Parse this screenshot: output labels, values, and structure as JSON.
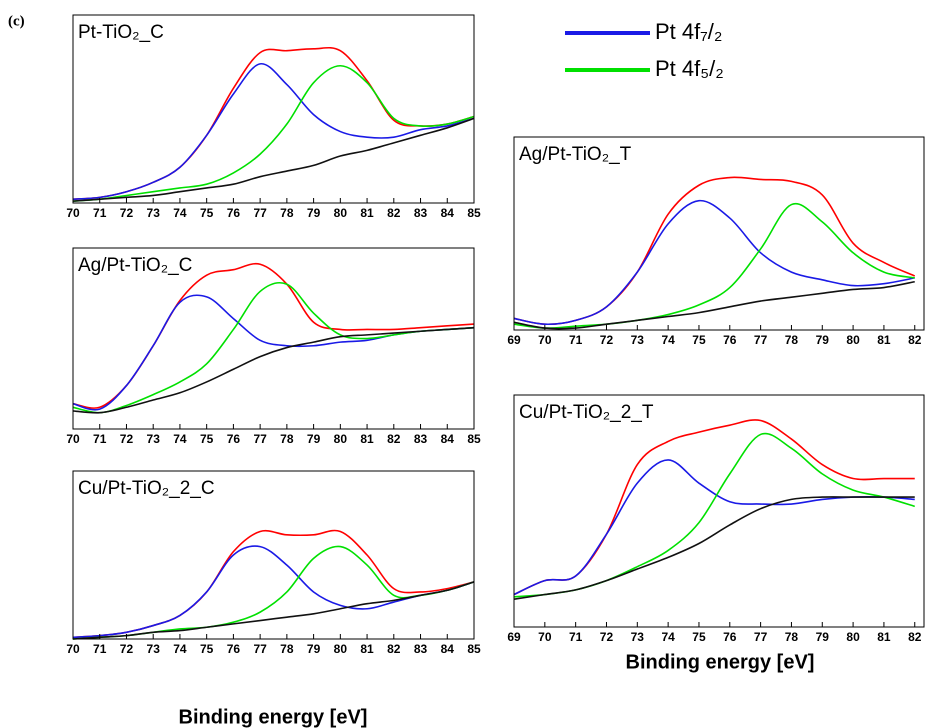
{
  "panel_label": "(c)",
  "legend": [
    {
      "label": "Pt 4f₇/₂",
      "color": "#1a1ae6"
    },
    {
      "label": "Pt 4f₅/₂",
      "color": "#00e000"
    }
  ],
  "chart_data": [
    {
      "type": "line",
      "title": "Pt-TiO₂_C",
      "x": [
        70,
        71,
        72,
        73,
        74,
        75,
        76,
        77,
        78,
        79,
        80,
        81,
        82,
        83,
        84,
        85
      ],
      "xlim": [
        70,
        85
      ],
      "xticks": [
        70,
        71,
        72,
        73,
        74,
        75,
        76,
        77,
        78,
        79,
        80,
        81,
        82,
        83,
        84,
        85
      ],
      "ylim": [
        0,
        100
      ],
      "series": [
        {
          "color": "#ff0000",
          "values": [
            2,
            3,
            6,
            11,
            19,
            36,
            61,
            80,
            81,
            82,
            81,
            65,
            44,
            41,
            42,
            46
          ]
        },
        {
          "color": "#1a1ae6",
          "values": [
            2,
            3,
            6,
            11,
            19,
            36,
            58,
            74,
            63,
            47,
            38,
            35,
            35,
            39,
            41,
            45
          ]
        },
        {
          "color": "#00e000",
          "values": [
            1,
            2,
            4,
            6,
            8,
            10,
            16,
            26,
            42,
            64,
            73,
            64,
            45,
            41,
            42,
            46
          ]
        },
        {
          "color": "#111111",
          "values": [
            1,
            2,
            3,
            4,
            6,
            8,
            10,
            14,
            17,
            20,
            25,
            28,
            32,
            36,
            40,
            45
          ]
        }
      ]
    },
    {
      "type": "line",
      "title": "Ag/Pt-TiO₂_C",
      "x": [
        70,
        71,
        72,
        73,
        74,
        75,
        76,
        77,
        78,
        79,
        80,
        81,
        82,
        83,
        84,
        85
      ],
      "xlim": [
        70,
        85
      ],
      "xticks": [
        70,
        71,
        72,
        73,
        74,
        75,
        76,
        77,
        78,
        79,
        80,
        81,
        82,
        83,
        84,
        85
      ],
      "ylim": [
        0,
        100
      ],
      "series": [
        {
          "color": "#ff0000",
          "values": [
            14,
            12,
            24,
            46,
            71,
            85,
            88,
            91,
            80,
            59,
            55,
            55,
            55,
            56,
            57,
            58
          ]
        },
        {
          "color": "#1a1ae6",
          "values": [
            14,
            11,
            24,
            46,
            70,
            73,
            61,
            49,
            46,
            46,
            48,
            49,
            52,
            54,
            55,
            56
          ]
        },
        {
          "color": "#00e000",
          "values": [
            12,
            9,
            13,
            19,
            26,
            36,
            55,
            76,
            80,
            64,
            52,
            50,
            52,
            54,
            55,
            56
          ]
        },
        {
          "color": "#111111",
          "values": [
            10,
            9,
            12,
            16,
            20,
            26,
            33,
            40,
            45,
            48,
            51,
            52,
            53,
            54,
            55,
            56
          ]
        }
      ]
    },
    {
      "type": "line",
      "title": "Cu/Pt-TiO₂_2_C",
      "xlabel": "Binding energy [eV]",
      "x": [
        70,
        71,
        72,
        73,
        74,
        75,
        76,
        77,
        78,
        79,
        80,
        81,
        82,
        83,
        84,
        85
      ],
      "xlim": [
        70,
        85
      ],
      "xticks": [
        70,
        71,
        72,
        73,
        74,
        75,
        76,
        77,
        78,
        79,
        80,
        81,
        82,
        83,
        84,
        85
      ],
      "ylim": [
        0,
        100
      ],
      "series": [
        {
          "color": "#ff0000",
          "values": [
            1,
            2,
            4,
            8,
            14,
            28,
            52,
            64,
            62,
            62,
            64,
            50,
            30,
            28,
            30,
            34
          ]
        },
        {
          "color": "#1a1ae6",
          "values": [
            1,
            2,
            4,
            8,
            14,
            28,
            50,
            55,
            44,
            28,
            20,
            18,
            22,
            26,
            29,
            34
          ]
        },
        {
          "color": "#00e000",
          "values": [
            0,
            1,
            2,
            4,
            6,
            7,
            10,
            16,
            28,
            48,
            55,
            44,
            26,
            26,
            29,
            34
          ]
        },
        {
          "color": "#111111",
          "values": [
            0,
            1,
            2,
            4,
            5,
            7,
            9,
            11,
            13,
            15,
            18,
            21,
            23,
            26,
            29,
            34
          ]
        }
      ]
    },
    {
      "type": "line",
      "title": "Ag/Pt-TiO₂_T",
      "x": [
        69,
        70,
        71,
        72,
        73,
        74,
        75,
        76,
        77,
        78,
        79,
        80,
        81,
        82
      ],
      "xlim": [
        69,
        82.3
      ],
      "xticks": [
        69,
        70,
        71,
        72,
        73,
        74,
        75,
        76,
        77,
        78,
        79,
        80,
        81,
        82
      ],
      "ylim": [
        0,
        100
      ],
      "series": [
        {
          "color": "#ff0000",
          "values": [
            6,
            3,
            5,
            12,
            30,
            60,
            75,
            79,
            78,
            77,
            70,
            45,
            35,
            28
          ]
        },
        {
          "color": "#1a1ae6",
          "values": [
            6,
            3,
            5,
            12,
            30,
            55,
            67,
            58,
            40,
            30,
            26,
            23,
            24,
            27
          ]
        },
        {
          "color": "#00e000",
          "values": [
            3,
            1,
            2,
            3,
            5,
            8,
            13,
            22,
            42,
            65,
            56,
            40,
            30,
            27
          ]
        },
        {
          "color": "#111111",
          "values": [
            4,
            1,
            1,
            3,
            5,
            7,
            9,
            12,
            15,
            17,
            19,
            21,
            22,
            25
          ]
        }
      ]
    },
    {
      "type": "line",
      "title": "Cu/Pt-TiO₂_2_T",
      "xlabel": "Binding energy [eV]",
      "x": [
        69,
        70,
        71,
        72,
        73,
        74,
        75,
        76,
        77,
        78,
        79,
        80,
        81,
        82
      ],
      "xlim": [
        69,
        82.3
      ],
      "xticks": [
        69,
        70,
        71,
        72,
        73,
        74,
        75,
        76,
        77,
        78,
        79,
        80,
        81,
        82
      ],
      "ylim": [
        0,
        100
      ],
      "series": [
        {
          "color": "#ff0000",
          "values": [
            14,
            20,
            22,
            40,
            70,
            80,
            84,
            87,
            89,
            81,
            70,
            64,
            64,
            64
          ]
        },
        {
          "color": "#1a1ae6",
          "values": [
            14,
            20,
            22,
            40,
            62,
            72,
            62,
            54,
            53,
            53,
            55,
            56,
            56,
            55
          ]
        },
        {
          "color": "#00e000",
          "values": [
            13,
            14,
            16,
            20,
            26,
            33,
            45,
            66,
            83,
            77,
            66,
            59,
            56,
            52
          ]
        },
        {
          "color": "#111111",
          "values": [
            12,
            14,
            16,
            20,
            25,
            30,
            36,
            44,
            51,
            55,
            56,
            56,
            56,
            56
          ]
        }
      ]
    }
  ]
}
